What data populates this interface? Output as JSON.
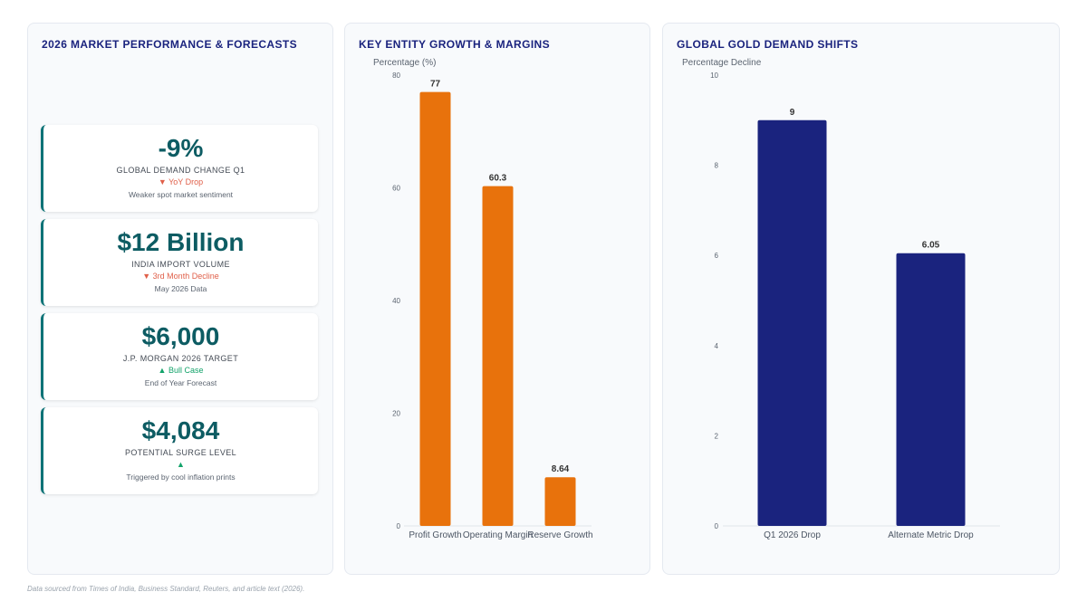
{
  "panels": {
    "performance": {
      "title": "2026 MARKET PERFORMANCE & FORECASTS"
    },
    "entity": {
      "title": "KEY ENTITY GROWTH & MARGINS"
    },
    "demand": {
      "title": "GLOBAL GOLD DEMAND SHIFTS"
    }
  },
  "kpis": [
    {
      "value": "-9%",
      "label": "GLOBAL DEMAND CHANGE Q1",
      "trend": "▼ YoY Drop",
      "note": "Weaker spot market sentiment",
      "direction": "down"
    },
    {
      "value": "$12 Billion",
      "label": "INDIA IMPORT VOLUME",
      "trend": "▼ 3rd Month Decline",
      "note": "May 2026 Data",
      "direction": "down"
    },
    {
      "value": "$6,000",
      "label": "J.P. MORGAN 2026 TARGET",
      "trend": "▲ Bull Case",
      "note": "End of Year Forecast",
      "direction": "up"
    },
    {
      "value": "$4,084",
      "label": "POTENTIAL SURGE LEVEL",
      "trend": "▲",
      "note": "Triggered by cool inflation prints",
      "direction": "up"
    }
  ],
  "colors": {
    "accent_teal": "#0d5c63",
    "trend_down": "#e0604a",
    "trend_up": "#13a36a",
    "bar_orange": "#e8720c",
    "bar_navy": "#1a237e",
    "title_navy": "#1a237e"
  },
  "chart_data": [
    {
      "type": "bar",
      "title": "KEY ENTITY GROWTH & MARGINS",
      "ylabel": "Percentage (%)",
      "xlabel": "",
      "categories": [
        "Profit Growth",
        "Operating Margin",
        "Reserve Growth"
      ],
      "values": [
        77,
        60.3,
        8.64
      ],
      "value_labels": [
        "77",
        "60.3",
        "8.64"
      ],
      "ylim": [
        0,
        80
      ],
      "yticks": [
        0,
        20,
        40,
        60,
        80
      ],
      "grid": false,
      "color": "#e8720c"
    },
    {
      "type": "bar",
      "title": "GLOBAL GOLD DEMAND SHIFTS",
      "ylabel": "Percentage Decline",
      "xlabel": "",
      "categories": [
        "Q1 2026 Drop",
        "Alternate Metric Drop"
      ],
      "values": [
        9,
        6.05
      ],
      "value_labels": [
        "9",
        "6.05"
      ],
      "ylim": [
        0,
        10
      ],
      "yticks": [
        0,
        2,
        4,
        6,
        8,
        10
      ],
      "grid": false,
      "color": "#1a237e"
    }
  ],
  "footer": {
    "source": "Data sourced from Times of India, Business Standard, Reuters, and article text (2026)."
  }
}
